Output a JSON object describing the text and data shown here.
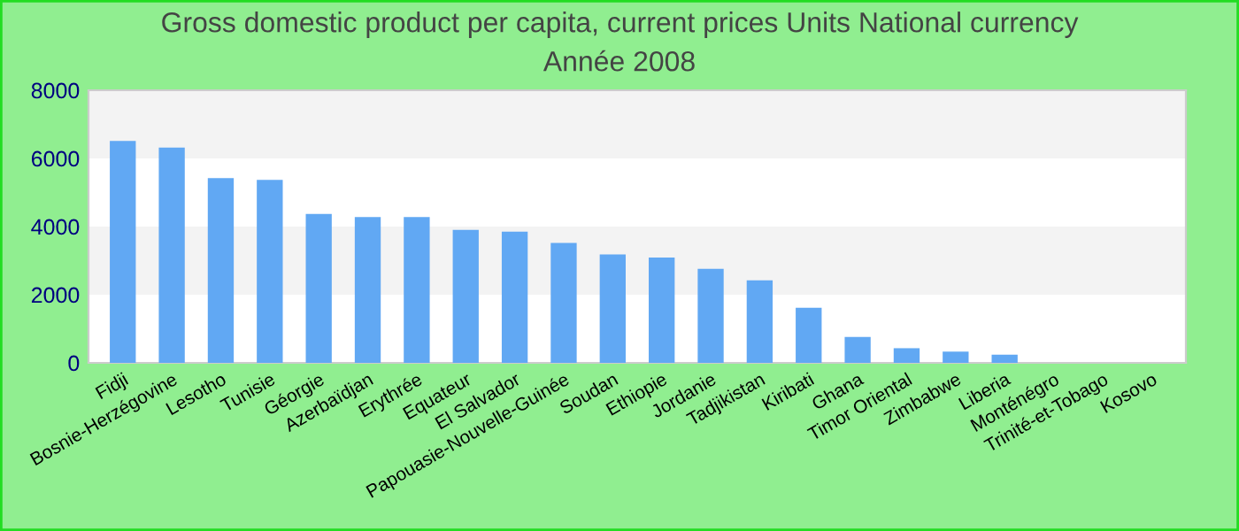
{
  "chart_data": {
    "type": "bar",
    "title": "Gross domestic product per capita, current prices Units National currency",
    "subtitle": "Année 2008",
    "categories": [
      "Fidji",
      "Bosnie-Herzégovine",
      "Lesotho",
      "Tunisie",
      "Géorgie",
      "Azerbaïdjan",
      "Erythrée",
      "Equateur",
      "El Salvador",
      "Papouasie-Nouvelle-Guinée",
      "Soudan",
      "Ethiopie",
      "Jordanie",
      "Tadjikistan",
      "Kiribati",
      "Ghana",
      "Timor Oriental",
      "Zimbabwe",
      "Liberia",
      "Monténégro",
      "Trinité-et-Tobago",
      "Kosovo"
    ],
    "values": [
      6510,
      6320,
      5420,
      5370,
      4370,
      4280,
      4280,
      3900,
      3850,
      3520,
      3180,
      3090,
      2760,
      2420,
      1620,
      760,
      430,
      330,
      240,
      null,
      null,
      null
    ],
    "color": "#61a8f3",
    "ylim": [
      0,
      8000
    ],
    "yticks": [
      0,
      2000,
      4000,
      6000,
      8000
    ],
    "bands": [
      {
        "axis": "y",
        "from": 2000,
        "to": 4000,
        "color": "#f3f3f3"
      },
      {
        "axis": "y",
        "from": 6000,
        "to": 8000,
        "color": "#f3f3f3"
      }
    ],
    "grid": false,
    "legend": false
  }
}
